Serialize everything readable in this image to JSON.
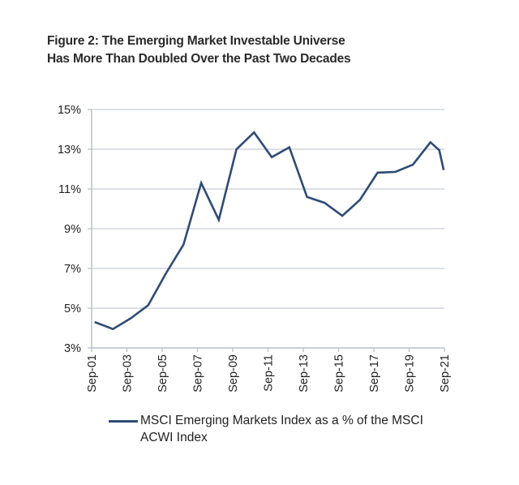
{
  "title": {
    "line1": "Figure 2: The Emerging Market Investable Universe",
    "line2": "Has More Than Doubled Over the Past Two Decades"
  },
  "colors": {
    "series": "#2f4b75",
    "grid": "#c8cdd6",
    "axis": "#b9c0cc"
  },
  "chart_data": {
    "type": "line",
    "title": "Figure 2: The Emerging Market Investable Universe Has More Than Doubled Over the Past Two Decades",
    "xlabel": "",
    "ylabel": "",
    "x_range": [
      2001.75,
      2021.75
    ],
    "ylim": [
      3,
      15
    ],
    "yticks": [
      3,
      5,
      7,
      9,
      11,
      13,
      15
    ],
    "ytick_labels": [
      "3%",
      "5%",
      "7%",
      "9%",
      "11%",
      "13%",
      "15%"
    ],
    "xticks": [
      2001.75,
      2003.75,
      2005.75,
      2007.75,
      2009.75,
      2011.75,
      2013.75,
      2015.75,
      2017.75,
      2019.75,
      2021.75
    ],
    "xtick_labels": [
      "Sep-01",
      "Sep-03",
      "Sep-05",
      "Sep-07",
      "Sep-09",
      "Sep-11",
      "Sep-13",
      "Sep-15",
      "Sep-17",
      "Sep-19",
      "Sep-21"
    ],
    "grid": true,
    "legend_position": "bottom",
    "series": [
      {
        "name": "MSCI Emerging Markets Index as a % of the MSCI ACWI Index",
        "x": [
          2001.92,
          2002.96,
          2003.98,
          2004.96,
          2005.96,
          2006.96,
          2007.96,
          2008.96,
          2009.96,
          2010.96,
          2011.96,
          2012.96,
          2013.96,
          2014.96,
          2015.96,
          2016.96,
          2017.96,
          2018.96,
          2019.96,
          2020.96,
          2021.46,
          2021.71
        ],
        "values": [
          4.3,
          3.95,
          4.5,
          5.15,
          6.75,
          8.2,
          11.3,
          9.45,
          13.0,
          13.85,
          12.6,
          13.1,
          10.6,
          10.3,
          9.65,
          10.45,
          11.82,
          11.86,
          12.22,
          13.35,
          12.95,
          11.95
        ]
      }
    ]
  }
}
